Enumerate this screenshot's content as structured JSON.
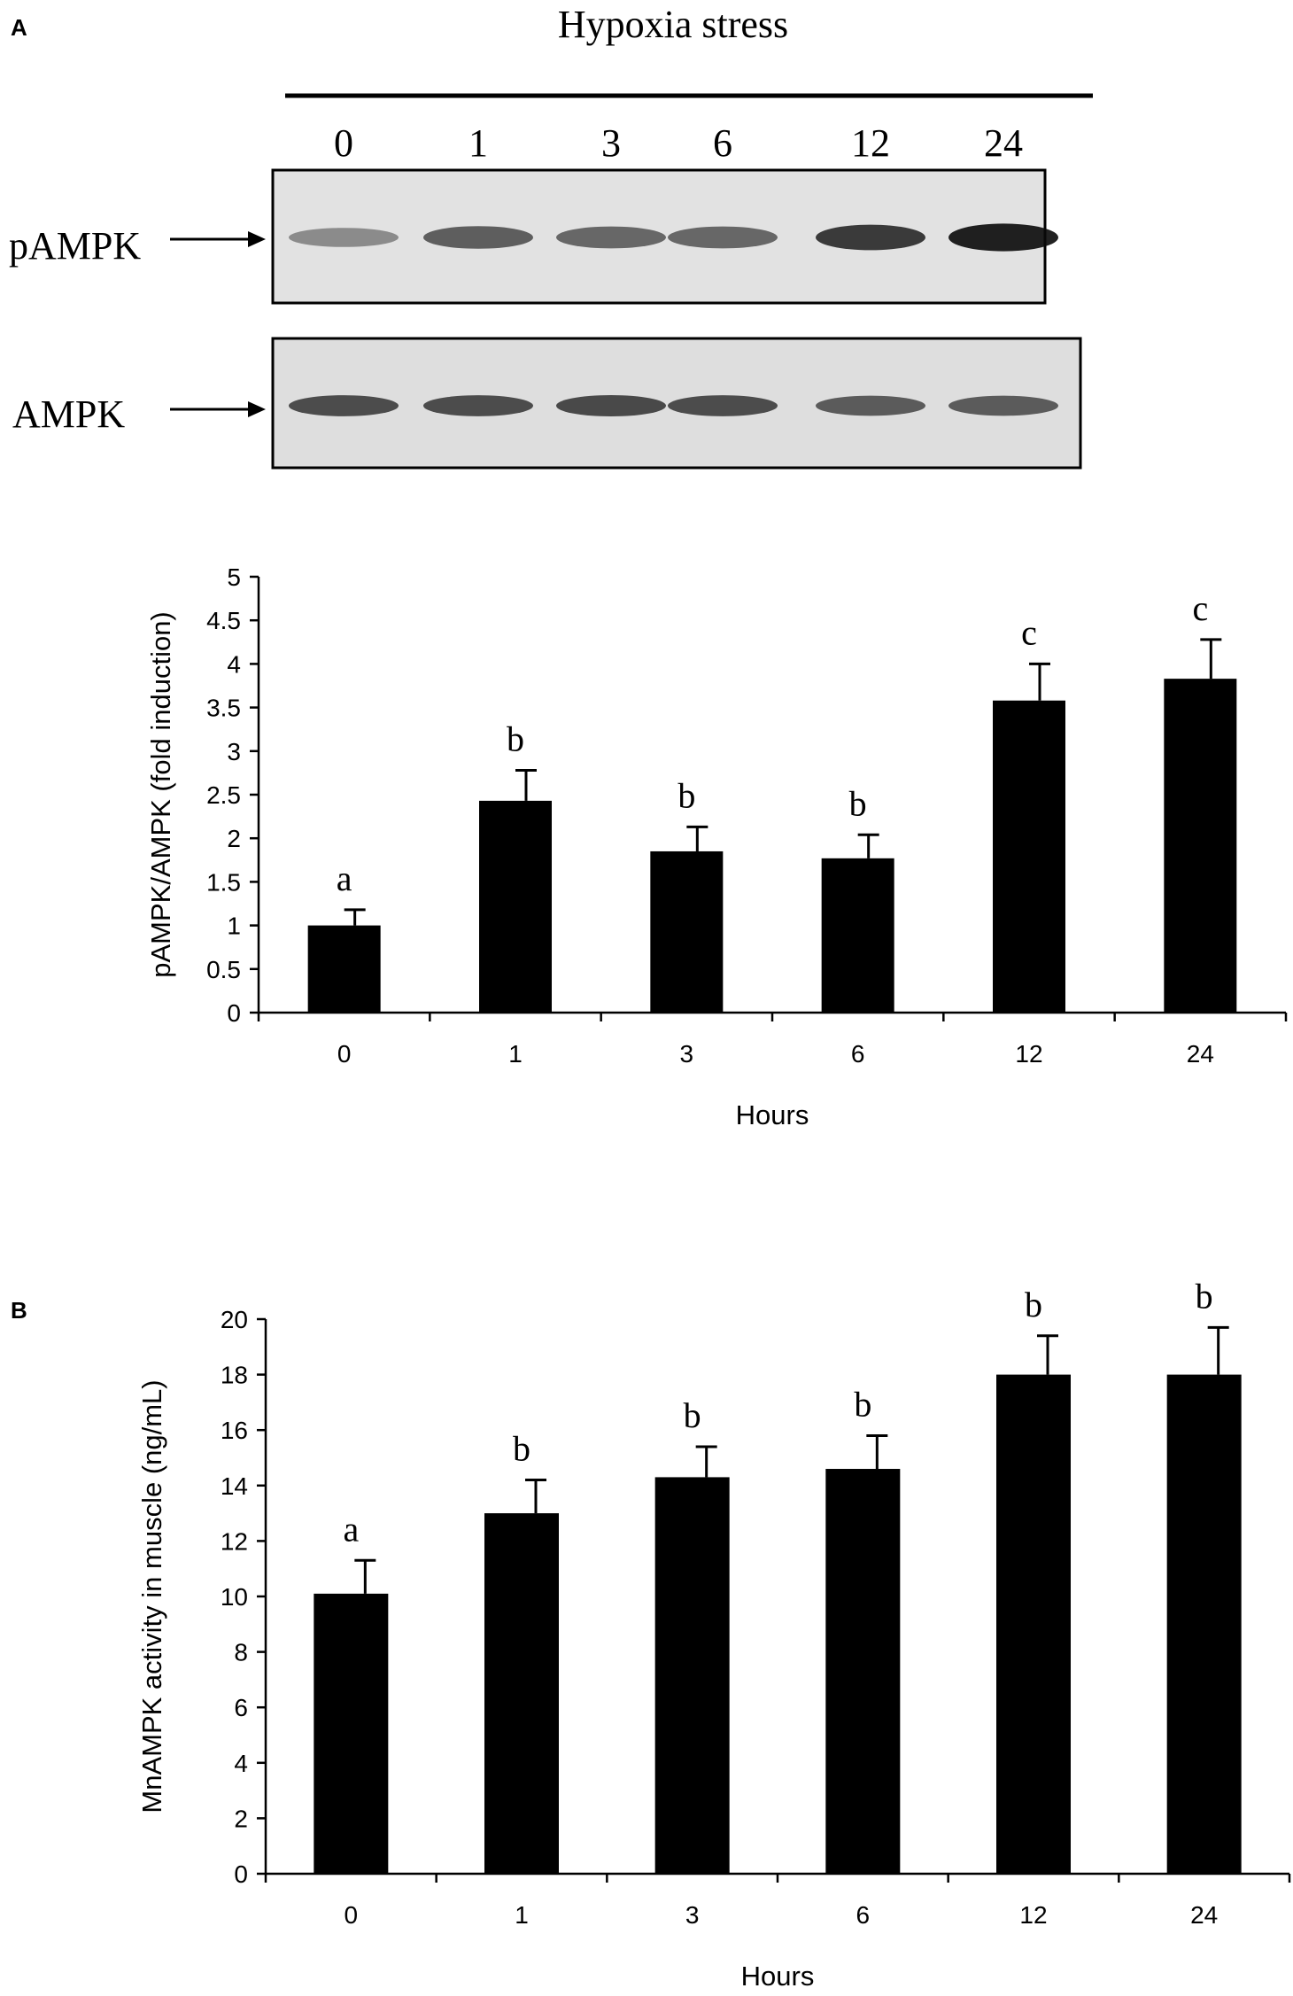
{
  "panel_a": {
    "label": "A",
    "blot": {
      "header": "Hypoxia stress",
      "lanes": [
        "0",
        "1",
        "3",
        "6",
        "12",
        "24"
      ],
      "rows": [
        {
          "label": "pAMPK",
          "intensities": [
            0.35,
            0.6,
            0.55,
            0.55,
            0.8,
            0.95
          ]
        },
        {
          "label": "AMPK",
          "intensities": [
            0.7,
            0.7,
            0.72,
            0.7,
            0.62,
            0.62
          ]
        }
      ]
    }
  },
  "panel_b": {
    "label": "B"
  },
  "chart_data": [
    {
      "type": "bar",
      "categories": [
        "0",
        "1",
        "3",
        "6",
        "12",
        "24"
      ],
      "values": [
        1.0,
        2.43,
        1.85,
        1.77,
        3.58,
        3.83
      ],
      "errors": [
        0.18,
        0.35,
        0.28,
        0.27,
        0.42,
        0.45
      ],
      "significance": [
        "a",
        "b",
        "b",
        "b",
        "c",
        "c"
      ],
      "xlabel": "Hours",
      "ylabel": "pAMPK/AMPK (fold induction)",
      "ylim": [
        0,
        5
      ],
      "yticks": [
        "0",
        "0.5",
        "1",
        "1.5",
        "2",
        "2.5",
        "3",
        "3.5",
        "4",
        "4.5",
        "5"
      ],
      "grid": false,
      "bar_color": "#000000"
    },
    {
      "type": "bar",
      "categories": [
        "0",
        "1",
        "3",
        "6",
        "12",
        "24"
      ],
      "values": [
        10.1,
        13.0,
        14.3,
        14.6,
        18.0,
        18.0
      ],
      "errors": [
        1.2,
        1.2,
        1.1,
        1.2,
        1.4,
        1.7
      ],
      "significance": [
        "a",
        "b",
        "b",
        "b",
        "b",
        "b"
      ],
      "xlabel": "Hours",
      "ylabel": "MnAMPK activity in muscle (ng/mL)",
      "ylim": [
        0,
        20
      ],
      "yticks": [
        "0",
        "2",
        "4",
        "6",
        "8",
        "10",
        "12",
        "14",
        "16",
        "18",
        "20"
      ],
      "grid": false,
      "bar_color": "#000000"
    }
  ]
}
